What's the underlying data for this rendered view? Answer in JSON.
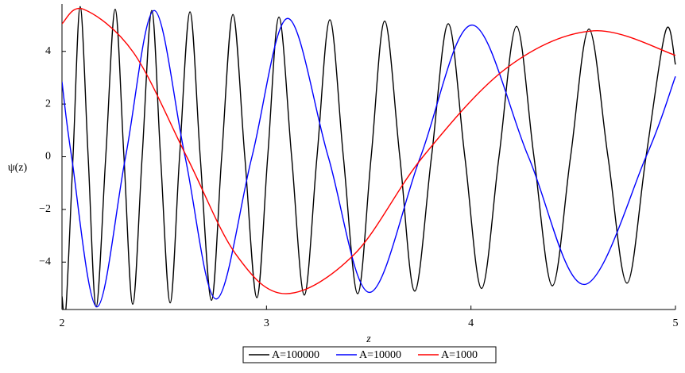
{
  "chart_data": {
    "type": "line",
    "x_label": "z",
    "y_label": "ψ(z)",
    "xlim": [
      2,
      5
    ],
    "xticks": [
      2,
      3,
      4,
      5
    ],
    "ylim": [
      -5.8,
      5.8
    ],
    "yticks": [
      {
        "value": -4,
        "label": "−4"
      },
      {
        "value": -2,
        "label": "−2"
      },
      0,
      2,
      4
    ],
    "legend": "bottom",
    "series": [
      {
        "name": "A=100000",
        "color": "#000000",
        "x": [
          2.0,
          2.019,
          2.054,
          2.089,
          2.128,
          2.167,
          2.214,
          2.26,
          2.303,
          2.346,
          2.392,
          2.439,
          2.482,
          2.529,
          2.575,
          2.626,
          2.676,
          2.731,
          2.781,
          2.836,
          2.894,
          2.953,
          3.006,
          3.061,
          3.123,
          3.185,
          3.247,
          3.31,
          3.376,
          3.446,
          3.512,
          3.578,
          3.652,
          3.725,
          3.807,
          3.889,
          3.97,
          4.052,
          4.137,
          4.223,
          4.308,
          4.398,
          4.487,
          4.577,
          4.67,
          4.763,
          4.856,
          4.953,
          5.0
        ],
        "values": [
          -5.3,
          -5.8,
          0,
          5.7,
          0,
          -5.7,
          0,
          5.6,
          0,
          -5.6,
          0,
          5.55,
          0,
          -5.55,
          0,
          5.5,
          0,
          -5.45,
          0,
          5.4,
          0,
          -5.35,
          0,
          5.3,
          0,
          -5.25,
          0,
          5.2,
          0,
          -5.2,
          0,
          5.15,
          0,
          -5.1,
          0,
          5.05,
          0,
          -5.0,
          0,
          4.95,
          0,
          -4.9,
          0,
          4.85,
          0,
          -4.8,
          0,
          4.8,
          3.5
        ]
      },
      {
        "name": "A=10000",
        "color": "#0000ff",
        "x": [
          2.0,
          2.047,
          2.171,
          2.311,
          2.451,
          2.602,
          2.754,
          2.929,
          3.104,
          3.302,
          3.504,
          3.753,
          4.005,
          4.281,
          4.553,
          4.856,
          5.0
        ],
        "values": [
          2.85,
          0,
          -5.7,
          0,
          5.55,
          0,
          -5.4,
          0,
          5.25,
          0,
          -5.15,
          0,
          5.0,
          0,
          -4.85,
          0,
          3.05
        ]
      },
      {
        "name": "A=1000",
        "color": "#ff0000",
        "x": [
          2.0,
          2.105,
          2.35,
          2.61,
          2.85,
          3.095,
          3.43,
          3.765,
          4.18,
          4.6,
          5.0
        ],
        "values": [
          5.05,
          5.6,
          3.95,
          0,
          -3.7,
          -5.2,
          -3.7,
          0,
          3.4,
          4.78,
          3.85
        ]
      }
    ]
  }
}
